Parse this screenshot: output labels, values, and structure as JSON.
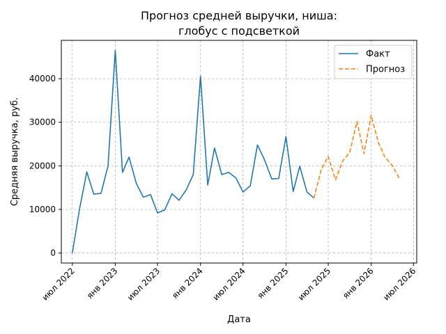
{
  "chart_data": {
    "type": "line",
    "title": "Прогноз средней выручки, ниша:\nглобус с подсветкой",
    "xlabel": "Дата",
    "ylabel": "Средняя выручка, руб.",
    "x_ticks": [
      {
        "date": "2022-07-01",
        "label": "июл 2022"
      },
      {
        "date": "2023-01-01",
        "label": "янв 2023"
      },
      {
        "date": "2023-07-01",
        "label": "июл 2023"
      },
      {
        "date": "2024-01-01",
        "label": "янв 2024"
      },
      {
        "date": "2024-07-01",
        "label": "июл 2024"
      },
      {
        "date": "2025-01-01",
        "label": "янв 2025"
      },
      {
        "date": "2025-07-01",
        "label": "июл 2025"
      },
      {
        "date": "2026-01-01",
        "label": "янв 2026"
      },
      {
        "date": "2026-07-01",
        "label": "июл 2026"
      }
    ],
    "y_ticks": [
      0,
      10000,
      20000,
      30000,
      40000
    ],
    "xlim": [
      "2022-05-15",
      "2026-07-15"
    ],
    "ylim": [
      -2300,
      48800
    ],
    "grid": true,
    "legend_position": "top-right",
    "series": [
      {
        "name": "Факт",
        "color": "#1f77b4",
        "style": "solid",
        "x": [
          "2022-07-01",
          "2022-08-01",
          "2022-09-01",
          "2022-10-01",
          "2022-11-01",
          "2022-12-01",
          "2023-01-01",
          "2023-02-01",
          "2023-03-01",
          "2023-04-01",
          "2023-05-01",
          "2023-06-01",
          "2023-07-01",
          "2023-08-01",
          "2023-09-01",
          "2023-10-01",
          "2023-11-01",
          "2023-12-01",
          "2024-01-01",
          "2024-02-01",
          "2024-03-01",
          "2024-04-01",
          "2024-05-01",
          "2024-06-01",
          "2024-07-01",
          "2024-08-01",
          "2024-09-01",
          "2024-10-01",
          "2024-11-01",
          "2024-12-01",
          "2025-01-01",
          "2025-02-01",
          "2025-03-01",
          "2025-04-01",
          "2025-05-01"
        ],
        "y": [
          0,
          10100,
          18600,
          13500,
          13700,
          20000,
          46500,
          18500,
          22000,
          16000,
          12800,
          13400,
          9200,
          9900,
          13600,
          12100,
          14500,
          18000,
          40600,
          15600,
          24100,
          18000,
          18500,
          17200,
          14000,
          15400,
          24800,
          21400,
          17000,
          17100,
          26700,
          14100,
          19900,
          14000,
          12600
        ]
      },
      {
        "name": "Прогноз",
        "color": "#ff7f0e",
        "style": "dashed",
        "x": [
          "2025-05-01",
          "2025-06-01",
          "2025-07-01",
          "2025-08-01",
          "2025-09-01",
          "2025-10-01",
          "2025-11-01",
          "2025-12-01",
          "2026-01-01",
          "2026-02-01",
          "2026-03-01",
          "2026-04-01",
          "2026-05-01"
        ],
        "y": [
          12600,
          19100,
          22200,
          16800,
          21100,
          23100,
          30200,
          22800,
          31600,
          25300,
          22000,
          20100,
          17200
        ]
      }
    ]
  }
}
